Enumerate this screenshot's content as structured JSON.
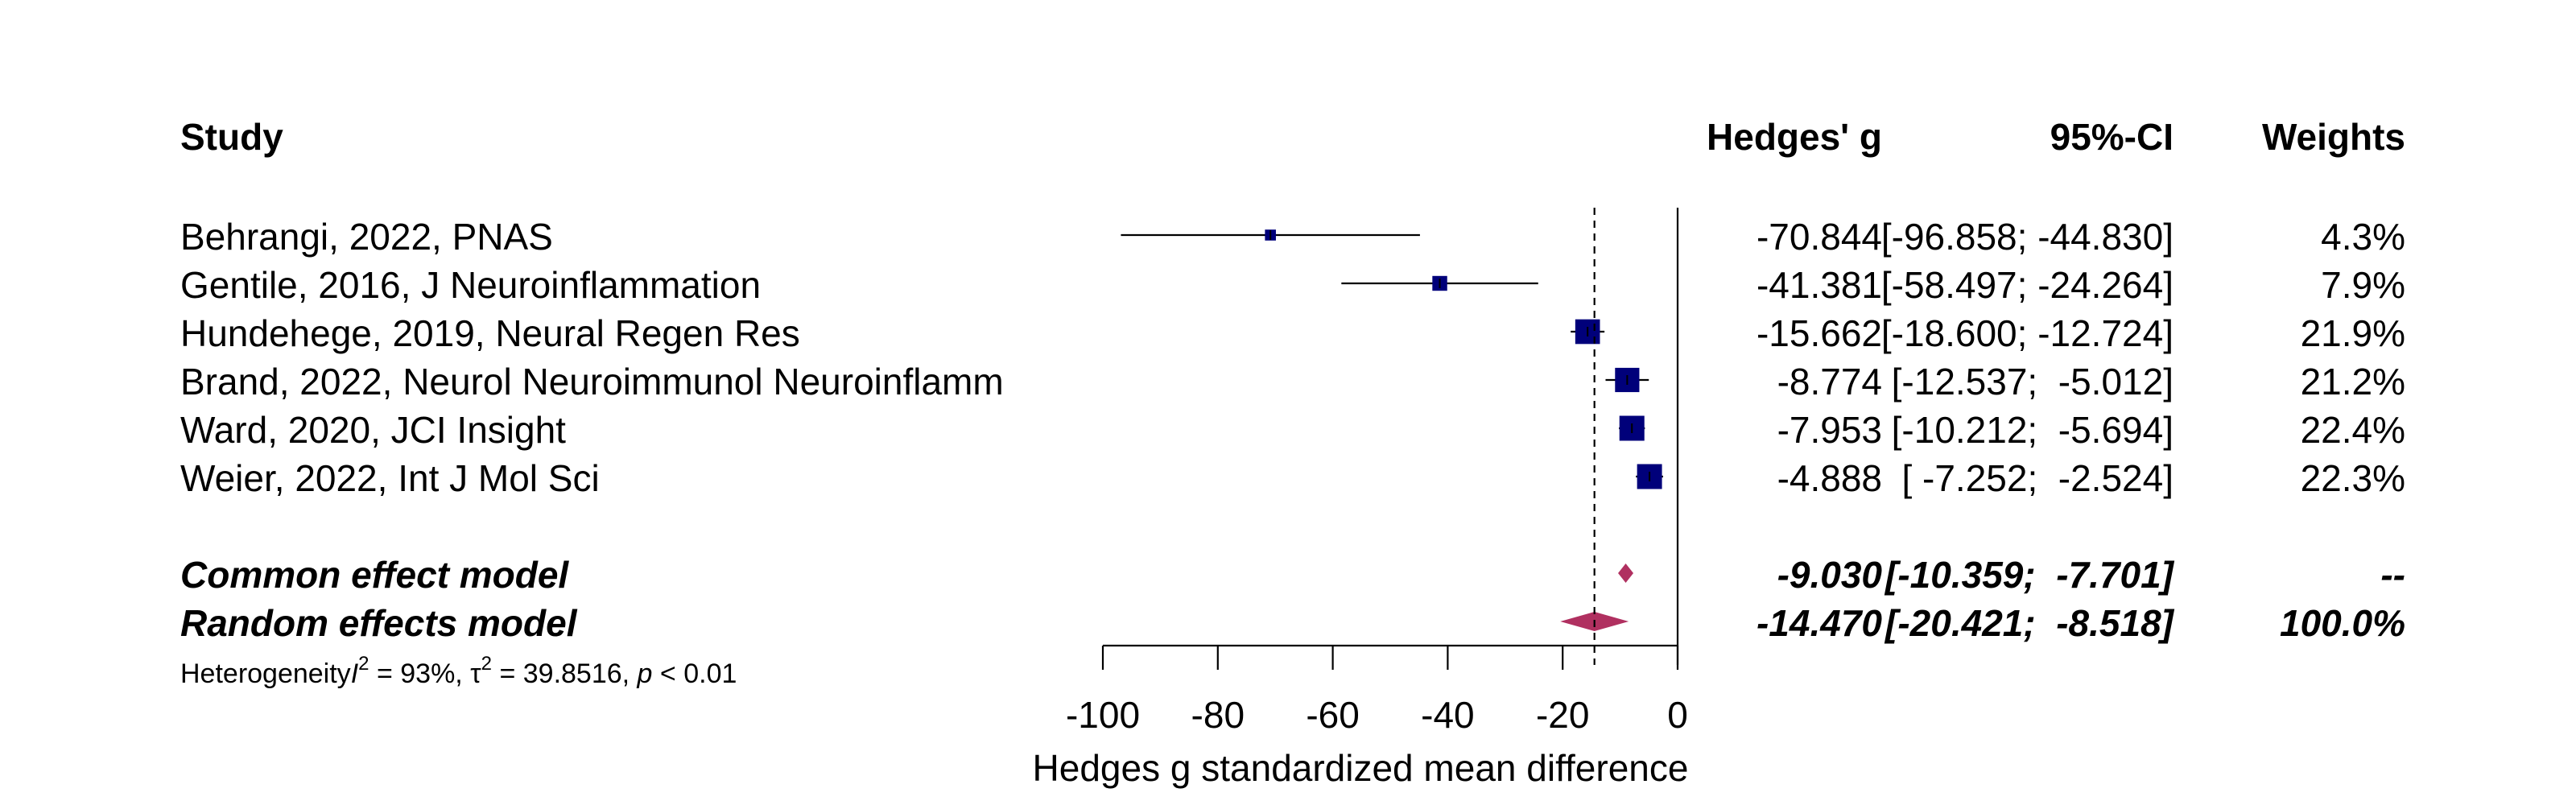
{
  "chart_data": {
    "type": "forest",
    "headers": {
      "study": "Study",
      "effect": "Hedges' g",
      "ci": "95%-CI",
      "weights": "Weights"
    },
    "studies": [
      {
        "label": "Behrangi, 2022, PNAS",
        "estimate": -70.844,
        "lower": -96.858,
        "upper": -44.83,
        "g_text": "-70.844",
        "ci_text": "[-96.858; -44.830]",
        "weight_text": "4.3%",
        "weight": 4.3
      },
      {
        "label": "Gentile, 2016, J Neuroinflammation",
        "estimate": -41.381,
        "lower": -58.497,
        "upper": -24.264,
        "g_text": "-41.381",
        "ci_text": "[-58.497; -24.264]",
        "weight_text": "7.9%",
        "weight": 7.9
      },
      {
        "label": "Hundehege, 2019, Neural Regen Res",
        "estimate": -15.662,
        "lower": -18.6,
        "upper": -12.724,
        "g_text": "-15.662",
        "ci_text": "[-18.600; -12.724]",
        "weight_text": "21.9%",
        "weight": 21.9
      },
      {
        "label": "Brand, 2022, Neurol Neuroimmunol Neuroinflamm",
        "estimate": -8.774,
        "lower": -12.537,
        "upper": -5.012,
        "g_text": "-8.774",
        "ci_text": " [-12.537;  -5.012]",
        "weight_text": "21.2%",
        "weight": 21.2
      },
      {
        "label": "Ward, 2020, JCI Insight",
        "estimate": -7.953,
        "lower": -10.212,
        "upper": -5.694,
        "g_text": "-7.953",
        "ci_text": " [-10.212;  -5.694]",
        "weight_text": "22.4%",
        "weight": 22.4
      },
      {
        "label": "Weier, 2022, Int J Mol Sci",
        "estimate": -4.888,
        "lower": -7.252,
        "upper": -2.524,
        "g_text": "-4.888",
        "ci_text": " [ -7.252;  -2.524]",
        "weight_text": "22.3%",
        "weight": 22.3
      }
    ],
    "summaries": [
      {
        "label": "Common effect model",
        "estimate": -9.03,
        "lower": -10.359,
        "upper": -7.701,
        "g_text": "-9.030",
        "ci_text": "[-10.359;  -7.701]",
        "weight_text": "--"
      },
      {
        "label": "Random effects model",
        "estimate": -14.47,
        "lower": -20.421,
        "upper": -8.518,
        "g_text": "-14.470",
        "ci_text": "[-20.421;  -8.518]",
        "weight_text": "100.0%"
      }
    ],
    "heterogeneity": {
      "prefix": "Heterogeneity",
      "i2_symbol": "I",
      "i2_value": " = 93%, ",
      "tau2_symbol": "τ",
      "tau2_value": " = 39.8516, ",
      "p_symbol": "p",
      "p_value": " < 0.01"
    },
    "xaxis": {
      "ticks": [
        -100,
        -80,
        -60,
        -40,
        -20,
        0
      ],
      "tick_labels": [
        "-100",
        "-80",
        "-60",
        "-40",
        "-20",
        "0"
      ],
      "xlim": [
        -100,
        0
      ],
      "label": "Hedges g standardized mean difference"
    },
    "reference_line": 0,
    "random_effect_reference": -14.47,
    "colors": {
      "square": "#00007a",
      "diamond": "#b03060",
      "line": "#000000"
    }
  }
}
